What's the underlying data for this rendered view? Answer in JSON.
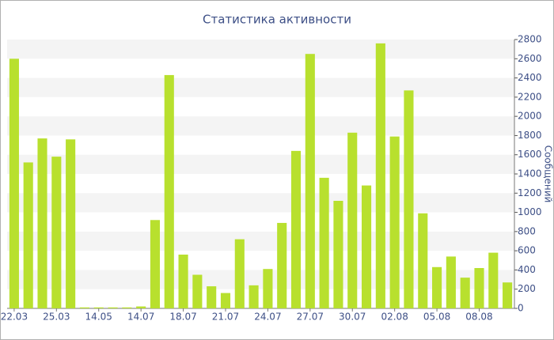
{
  "chart_data": {
    "type": "bar",
    "title": "Статистика активности",
    "y_label": "Сообщений",
    "categories": [
      "22.03",
      null,
      null,
      "25.03",
      null,
      null,
      "14.05",
      null,
      null,
      "14.07",
      null,
      null,
      "18.07",
      null,
      null,
      "21.07",
      null,
      null,
      "24.07",
      null,
      null,
      "27.07",
      null,
      null,
      "30.07",
      null,
      null,
      "02.08",
      null,
      null,
      "05.08",
      null,
      null,
      "08.08",
      null,
      null
    ],
    "values": [
      2600,
      1520,
      1770,
      1580,
      1760,
      10,
      10,
      10,
      10,
      20,
      920,
      2430,
      560,
      350,
      230,
      160,
      720,
      240,
      410,
      890,
      1640,
      2650,
      1360,
      1120,
      1830,
      1280,
      2760,
      1790,
      2270,
      990,
      430,
      540,
      320,
      420,
      580,
      270
    ],
    "color": "#b8e02e",
    "ylim": [
      0,
      2800
    ],
    "yticks": [
      0,
      200,
      400,
      600,
      800,
      1000,
      1200,
      1400,
      1600,
      1800,
      2000,
      2200,
      2400,
      2600,
      2800
    ],
    "grid": true,
    "y_axis_side": "right"
  }
}
